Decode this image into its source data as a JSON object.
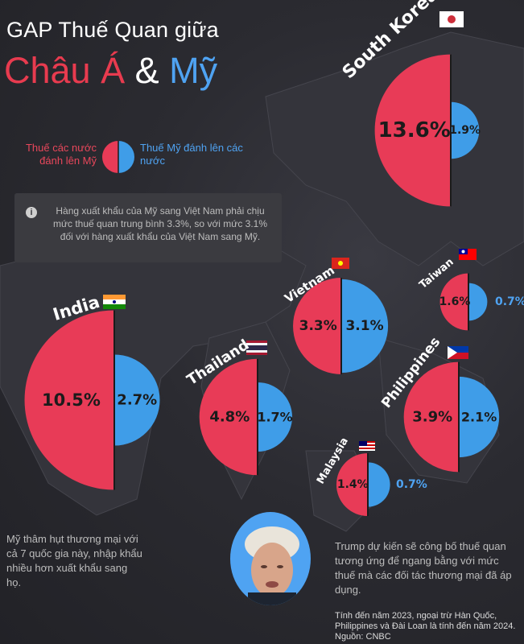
{
  "title": {
    "line1": "GAP Thuế Quan giữa",
    "part_a": "Châu Á",
    "amp": "&",
    "part_b": "Mỹ"
  },
  "legend": {
    "left": "Thuế các nước đánh lên Mỹ",
    "right": "Thuế Mỹ đánh lên các nước"
  },
  "info": {
    "icon": "info-icon",
    "text": "Hàng xuất khẩu của Mỹ sang Việt Nam phải chịu mức thuế quan trung bình 3.3%, so với mức 3.1% đối với hàng xuất khẩu của Việt Nam sang Mỹ."
  },
  "notes": {
    "left": "Mỹ thâm hụt thương mại với cả 7 quốc gia này, nhập khẩu nhiều hơn xuất khẩu sang họ.",
    "right": "Trump dự kiến sẽ công bố thuế quan tương ứng để ngang bằng với mức thuế mà các đối tác thương mại đã áp dụng.",
    "source": "Tính đến năm 2023, ngoại trừ Hàn Quốc, Philippines và Đài Loan là tính đến năm 2024. Nguồn: CNBC"
  },
  "colors": {
    "asia": "#e83b57",
    "us": "#3f9de8",
    "background": "#2b2b31"
  },
  "chart_data": {
    "type": "semicircle-pairs",
    "series": [
      {
        "name": "Thuế các nước đánh lên Mỹ",
        "color": "#e83b57"
      },
      {
        "name": "Thuế Mỹ đánh lên các nước",
        "color": "#3f9de8"
      }
    ],
    "countries": [
      {
        "key": "sk",
        "name": "South Korea",
        "asia_to_us": 13.6,
        "us_to_asia": 1.9,
        "asia_label": "13.6%",
        "us_label": "1.9%",
        "flag": "south-korea-flag"
      },
      {
        "key": "tw",
        "name": "Taiwan",
        "asia_to_us": 1.6,
        "us_to_asia": 0.7,
        "asia_label": "1.6%",
        "us_label": "0.7%",
        "flag": "taiwan-flag"
      },
      {
        "key": "vn",
        "name": "Vietnam",
        "asia_to_us": 3.3,
        "us_to_asia": 3.1,
        "asia_label": "3.3%",
        "us_label": "3.1%",
        "flag": "vietnam-flag"
      },
      {
        "key": "in",
        "name": "India",
        "asia_to_us": 10.5,
        "us_to_asia": 2.7,
        "asia_label": "10.5%",
        "us_label": "2.7%",
        "flag": "india-flag"
      },
      {
        "key": "th",
        "name": "Thailand",
        "asia_to_us": 4.8,
        "us_to_asia": 1.7,
        "asia_label": "4.8%",
        "us_label": "1.7%",
        "flag": "thailand-flag"
      },
      {
        "key": "ph",
        "name": "Philippines",
        "asia_to_us": 3.9,
        "us_to_asia": 2.1,
        "asia_label": "3.9%",
        "us_label": "2.1%",
        "flag": "philippines-flag"
      },
      {
        "key": "my",
        "name": "Malaysia",
        "asia_to_us": 1.4,
        "us_to_asia": 0.7,
        "asia_label": "1.4%",
        "us_label": "0.7%",
        "flag": "malaysia-flag"
      }
    ]
  }
}
